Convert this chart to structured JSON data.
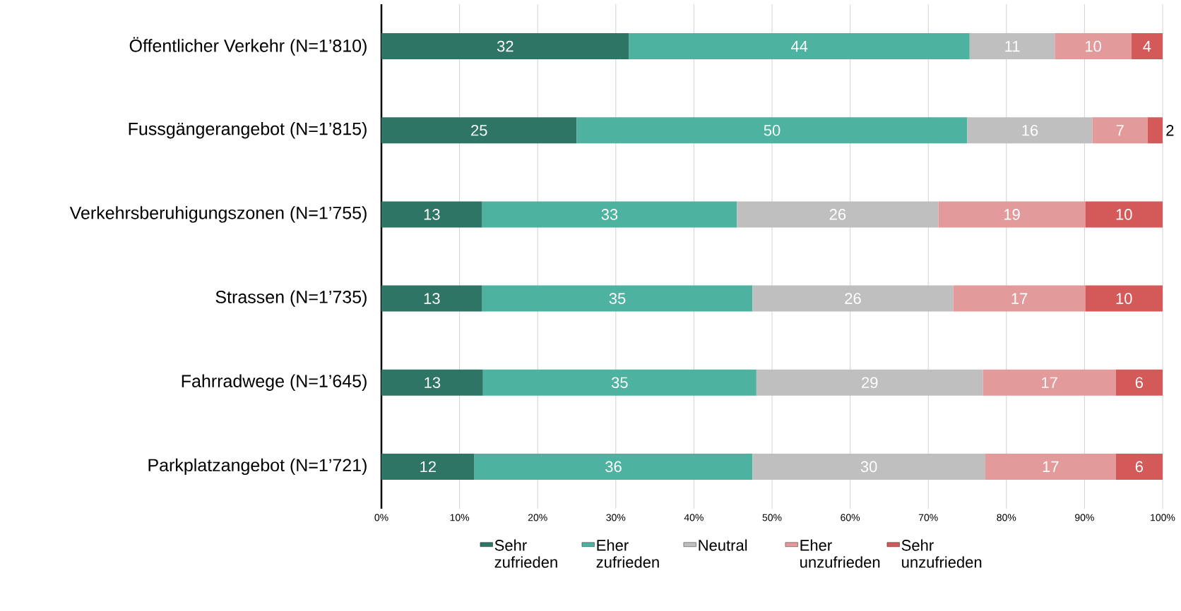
{
  "chart_data": {
    "type": "bar",
    "orientation": "horizontal",
    "stacked": true,
    "categories": [
      "Öffentlicher Verkehr (N=1’810)",
      "Fussgängerangebot (N=1’815)",
      "Verkehrsberuhigungszonen (N=1’755)",
      "Strassen (N=1’735)",
      "Fahrradwege (N=1’645)",
      "Parkplatzangebot (N=1’721)"
    ],
    "series": [
      {
        "name": "Sehr zufrieden",
        "color": "#2e7566",
        "values": [
          31.7,
          25.0,
          12.9,
          12.9,
          13.0,
          11.9
        ],
        "value_labels": [
          "32",
          "25",
          "13",
          "13",
          "13",
          "12"
        ]
      },
      {
        "name": "Eher zufrieden",
        "color": "#4db3a0",
        "values": [
          43.6,
          50.0,
          32.6,
          34.6,
          35.0,
          35.6
        ],
        "value_labels": [
          "44",
          "50",
          "33",
          "35",
          "35",
          "36"
        ]
      },
      {
        "name": "Neutral",
        "color": "#bfbfbf",
        "values": [
          10.9,
          16.0,
          25.8,
          25.7,
          29.0,
          29.8
        ],
        "value_labels": [
          "11",
          "16",
          "26",
          "26",
          "29",
          "30"
        ]
      },
      {
        "name": "Eher unzufrieden",
        "color": "#e39a9a",
        "values": [
          9.8,
          7.1,
          18.8,
          16.9,
          17.0,
          16.7
        ],
        "value_labels": [
          "10",
          "7",
          "19",
          "17",
          "17",
          "17"
        ]
      },
      {
        "name": "Sehr unzufrieden",
        "color": "#d45a5a",
        "values": [
          4.0,
          1.9,
          9.9,
          9.9,
          6.0,
          6.0
        ],
        "value_labels": [
          "4",
          "2",
          "10",
          "10",
          "6",
          "6"
        ]
      }
    ],
    "xlim": [
      0,
      100
    ],
    "xticks": [
      {
        "value": 0,
        "label": "0%"
      },
      {
        "value": 10,
        "label": "10%"
      },
      {
        "value": 20,
        "label": "20%"
      },
      {
        "value": 30,
        "label": "30%"
      },
      {
        "value": 40,
        "label": "40%"
      },
      {
        "value": 50,
        "label": "50%"
      },
      {
        "value": 60,
        "label": "60%"
      },
      {
        "value": 70,
        "label": "70%"
      },
      {
        "value": 80,
        "label": "80%"
      },
      {
        "value": 90,
        "label": "90%"
      },
      {
        "value": 100,
        "label": "100%"
      }
    ],
    "grid": "x",
    "legend": "bottom"
  }
}
